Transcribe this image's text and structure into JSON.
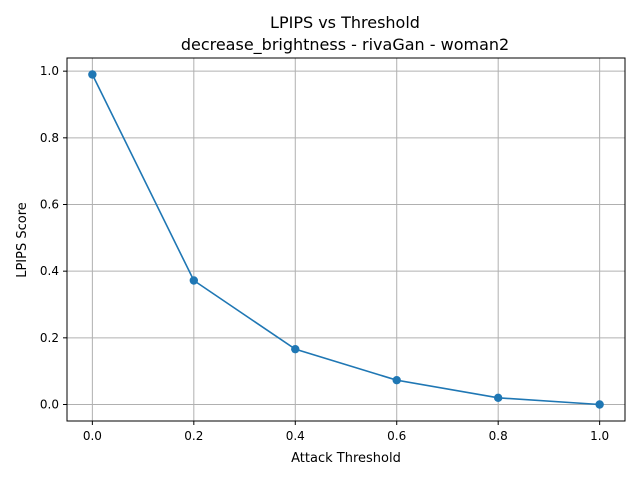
{
  "chart_data": {
    "type": "line",
    "title": "LPIPS vs Threshold",
    "subtitle": "decrease_brightness - rivaGan - woman2",
    "xlabel": "Attack Threshold",
    "ylabel": "LPIPS Score",
    "xlim": [
      -0.05,
      1.05
    ],
    "ylim": [
      -0.0495,
      1.0395
    ],
    "xticks": [
      0.0,
      0.2,
      0.4,
      0.6,
      0.8,
      1.0
    ],
    "xtick_labels": [
      "0.0",
      "0.2",
      "0.4",
      "0.6",
      "0.8",
      "1.0"
    ],
    "yticks": [
      0.0,
      0.2,
      0.4,
      0.6,
      0.8,
      1.0
    ],
    "ytick_labels": [
      "0.0",
      "0.2",
      "0.4",
      "0.6",
      "0.8",
      "1.0"
    ],
    "grid": true,
    "series": [
      {
        "color": "#1f77b4",
        "marker": "circle",
        "x": [
          0.0,
          0.2,
          0.4,
          0.6,
          0.8,
          1.0
        ],
        "y": [
          0.99,
          0.372,
          0.166,
          0.073,
          0.02,
          0.0
        ]
      }
    ]
  }
}
